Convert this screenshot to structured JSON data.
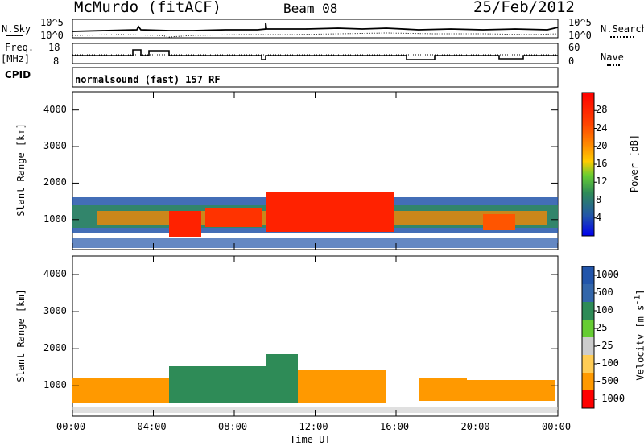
{
  "header": {
    "station": "McMurdo (fitACF)",
    "beam": "Beam 08",
    "date": "25/Feb/2012"
  },
  "noise_panel": {
    "left_label": "N.Sky",
    "left_ticks": [
      "10^5",
      "10^0"
    ],
    "right_label": "N.Search",
    "right_ticks": [
      "10^5",
      "10^0"
    ]
  },
  "freq_panel": {
    "left_label_line1": "Freq.",
    "left_label_line2": "[MHz]",
    "left_ticks": [
      "18",
      "8"
    ],
    "right_label": "Nave",
    "right_ticks": [
      "60",
      "0"
    ],
    "cpid_label": "CPID",
    "cpid_text": "normalsound (fast) 157 RF"
  },
  "colors": {
    "power_scale": [
      "#0000ee",
      "#2255aa",
      "#2e8b57",
      "#66cc33",
      "#ffcc00",
      "#ff8800",
      "#ff4400",
      "#ff0000"
    ],
    "velocity_scale": [
      "#ff0000",
      "#ff5500",
      "#ff9900",
      "#ffcc55",
      "#cccccc",
      "#66cc33",
      "#2e8b57",
      "#2255aa"
    ]
  },
  "chart_data": [
    {
      "type": "heatmap",
      "title": "",
      "ylabel": "Slant Range [km]",
      "ylim": [
        180,
        4500
      ],
      "yticks": [
        "1000",
        "2000",
        "3000",
        "4000"
      ],
      "xlim": [
        "00:00",
        "24:00"
      ],
      "colorbar_label": "Power [dB]",
      "colorbar_ticks": [
        "4",
        "8",
        "12",
        "16",
        "20",
        "24",
        "28"
      ],
      "colorbar_range": [
        0,
        32
      ]
    },
    {
      "type": "heatmap",
      "title": "",
      "ylabel": "Slant Range [km]",
      "ylim": [
        180,
        4500
      ],
      "yticks": [
        "1000",
        "2000",
        "3000",
        "4000"
      ],
      "xlabel": "Time UT",
      "xticks": [
        "00:00",
        "04:00",
        "08:00",
        "12:00",
        "16:00",
        "20:00",
        "00:00"
      ],
      "xlim": [
        "00:00",
        "24:00"
      ],
      "colorbar_label": "Velocity [m s^-1]",
      "colorbar_ticks": [
        "1000",
        "500",
        "100",
        "25",
        "-25",
        "-100",
        "-500",
        "-1000"
      ]
    }
  ]
}
